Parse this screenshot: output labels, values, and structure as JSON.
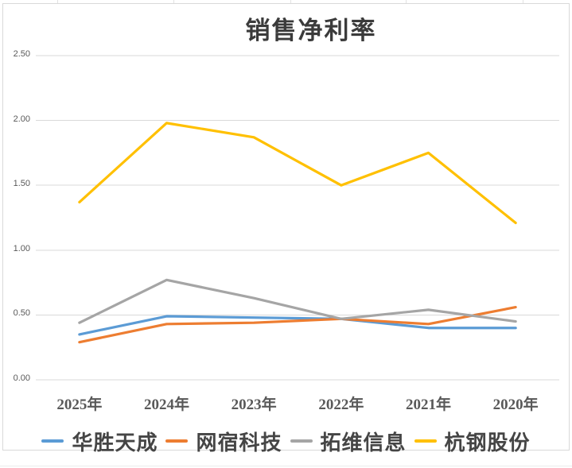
{
  "chart_data": {
    "type": "line",
    "title": "销售净利率",
    "categories": [
      "2025年",
      "2024年",
      "2023年",
      "2022年",
      "2021年",
      "2020年"
    ],
    "series": [
      {
        "name": "华胜天成",
        "color": "#5B9BD5",
        "values": [
          0.35,
          0.49,
          0.48,
          0.47,
          0.4,
          0.4
        ]
      },
      {
        "name": "网宿科技",
        "color": "#ED7D31",
        "values": [
          0.29,
          0.43,
          0.44,
          0.47,
          0.43,
          0.56
        ]
      },
      {
        "name": "拓维信息",
        "color": "#A5A5A5",
        "values": [
          0.44,
          0.77,
          0.63,
          0.47,
          0.54,
          0.45
        ]
      },
      {
        "name": "杭钢股份",
        "color": "#FFC000",
        "values": [
          1.37,
          1.98,
          1.87,
          1.5,
          1.75,
          1.21
        ]
      }
    ],
    "y_ticks": [
      {
        "label": "2.50",
        "value": 2.5
      },
      {
        "label": "2.00",
        "value": 2.0
      },
      {
        "label": "1.50",
        "value": 1.5
      },
      {
        "label": "1.00",
        "value": 1.0
      },
      {
        "label": "0.50",
        "value": 0.5
      },
      {
        "label": "0.00",
        "value": 0.0
      }
    ],
    "ylim": [
      0,
      2.5
    ],
    "grid": true,
    "legend_position": "bottom"
  },
  "colors": {
    "gridline": "#D9D9D9",
    "chart_border": "#D9D9D9",
    "axis_text": "#595959",
    "title_text": "#3B3B3B"
  }
}
